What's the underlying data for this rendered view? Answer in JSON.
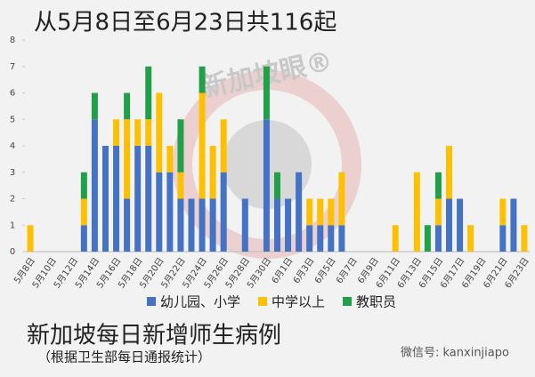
{
  "chart_data": {
    "type": "bar",
    "stacked": true,
    "title": "从5月8日至6月23日共116起",
    "subtitle": "新加坡每日新增师生病例",
    "note": "（根据卫生部每日通报统计）",
    "watermark": "新加坡眼®",
    "source": "微信号: kanxinjiapo",
    "categories": [
      "5月8日",
      null,
      "5月10日",
      null,
      "5月12日",
      null,
      "5月14日",
      null,
      "5月16日",
      null,
      "5月18日",
      null,
      "5月20日",
      null,
      "5月22日",
      null,
      "5月24日",
      null,
      "5月26日",
      null,
      "5月28日",
      null,
      "5月30日",
      null,
      "6月1日",
      null,
      "6月3日",
      null,
      "6月5日",
      null,
      "6月7日",
      null,
      "6月9日",
      null,
      "6月11日",
      null,
      "6月13日",
      null,
      "6月15日",
      null,
      "6月17日",
      null,
      "6月19日",
      null,
      "6月21日",
      null,
      "6月23日"
    ],
    "series": [
      {
        "name": "幼儿园、小学",
        "color": "#4472c4",
        "values": [
          0,
          0,
          0,
          0,
          0,
          1,
          5,
          4,
          4,
          2,
          4,
          4,
          3,
          3,
          2,
          2,
          2,
          2,
          3,
          0,
          2,
          0,
          5,
          2,
          2,
          3,
          1,
          1,
          1,
          1,
          0,
          0,
          0,
          0,
          0,
          0,
          0,
          0,
          1,
          2,
          2,
          0,
          0,
          0,
          1,
          2,
          0
        ]
      },
      {
        "name": "中学以上",
        "color": "#ffc000",
        "values": [
          1,
          0,
          0,
          0,
          0,
          1,
          0,
          0,
          1,
          3,
          1,
          1,
          3,
          1,
          1,
          0,
          4,
          2,
          2,
          0,
          0,
          0,
          0,
          0,
          0,
          0,
          1,
          1,
          1,
          2,
          0,
          0,
          0,
          0,
          1,
          0,
          3,
          0,
          1,
          2,
          0,
          1,
          0,
          0,
          1,
          0,
          1
        ]
      },
      {
        "name": "教职员",
        "color": "#21a04a",
        "values": [
          0,
          0,
          0,
          0,
          0,
          1,
          1,
          0,
          0,
          1,
          0,
          2,
          0,
          0,
          2,
          0,
          1,
          0,
          0,
          0,
          0,
          0,
          2,
          1,
          0,
          0,
          0,
          0,
          0,
          0,
          0,
          0,
          0,
          0,
          0,
          0,
          0,
          1,
          1,
          0,
          0,
          0,
          0,
          0,
          0,
          0,
          0
        ]
      }
    ],
    "ylim": [
      0,
      8
    ],
    "yticks": [
      0,
      1,
      2,
      3,
      4,
      5,
      6,
      7,
      8
    ],
    "grid": false,
    "legend": "bottom"
  }
}
